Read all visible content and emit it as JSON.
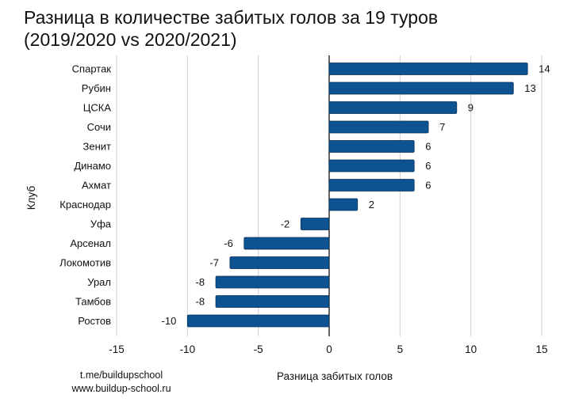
{
  "chart_data": {
    "type": "bar",
    "orientation": "horizontal",
    "title_lines": [
      "Разница в количестве забитых голов за 19 туров",
      "(2019/2020 vs 2020/2021)"
    ],
    "xlabel": "Разница забитых голов",
    "ylabel": "Клуб",
    "categories": [
      "Спартак",
      "Рубин",
      "ЦСКА",
      "Сочи",
      "Зенит",
      "Динамо",
      "Ахмат",
      "Краснодар",
      "Уфа",
      "Арсенал",
      "Локомотив",
      "Урал",
      "Тамбов",
      "Ростов"
    ],
    "values": [
      14,
      13,
      9,
      7,
      6,
      6,
      6,
      2,
      -2,
      -6,
      -7,
      -8,
      -8,
      -10
    ],
    "xlim": [
      -15,
      15
    ],
    "xticks": [
      -15,
      -10,
      -5,
      0,
      5,
      10,
      15
    ],
    "grid": true,
    "bar_color": "#0d5291",
    "grid_color": "#cfcfcf"
  },
  "credits": {
    "telegram": "t.me/buildupschool",
    "website": "www.buildup-school.ru"
  }
}
